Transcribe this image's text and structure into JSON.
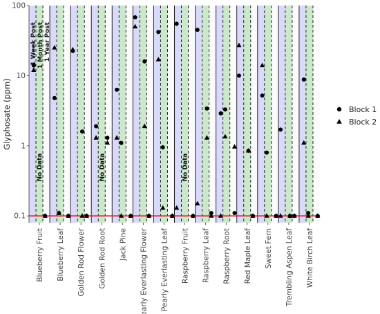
{
  "chart_data": {
    "type": "scatter",
    "ylabel": "Glyphosate (ppm)",
    "xlabel": "",
    "y_scale": "log",
    "ylim": [
      0.08,
      100
    ],
    "y_ticks": [
      0.1,
      1,
      10,
      100
    ],
    "y_tick_labels": [
      "0.1",
      "1",
      "10",
      "100"
    ],
    "reference_line": {
      "y": 0.1,
      "color": "#e41a1c"
    },
    "grid": false,
    "legend_position": "right",
    "band_colors": [
      "#d9d9fb",
      "#cbe8cb",
      "#fbfbfb"
    ],
    "categories": [
      "Blueberry Fruit",
      "Blueberry Leaf",
      "Golden Rod Flower",
      "Golden Rod Root",
      "Jack Pine",
      "Pearly Everlasting Flower",
      "Pearly Everlasting Leaf",
      "Raspberry Fruit",
      "Raspberry Leaf",
      "Raspberry Root",
      "Red Maple Leaf",
      "Sweet Fern",
      "Trembling Aspen Leaf",
      "White Birch Leaf"
    ],
    "time_annotations": [
      "1 Week Post",
      "1 Month Post",
      "1 Year Post"
    ],
    "no_data": [
      {
        "category_index": 0,
        "period_index": 1,
        "text": "No Data"
      },
      {
        "category_index": 3,
        "period_index": 1,
        "text": "No Data"
      },
      {
        "category_index": 7,
        "period_index": 1,
        "text": "No Data"
      }
    ],
    "series": [
      {
        "name": "Block 1",
        "marker": "circle",
        "points": [
          {
            "category_index": 0,
            "period_index": 0,
            "y": 14
          },
          {
            "category_index": 0,
            "period_index": 2,
            "y": 0.1
          },
          {
            "category_index": 1,
            "period_index": 0,
            "y": 4.8
          },
          {
            "category_index": 1,
            "period_index": 1,
            "y": 0.11
          },
          {
            "category_index": 1,
            "period_index": 2,
            "y": 0.1
          },
          {
            "category_index": 2,
            "period_index": 0,
            "y": 22.5
          },
          {
            "category_index": 2,
            "period_index": 1,
            "y": 1.6
          },
          {
            "category_index": 2,
            "period_index": 2,
            "y": 0.1
          },
          {
            "category_index": 3,
            "period_index": 0,
            "y": 1.9
          },
          {
            "category_index": 3,
            "period_index": 2,
            "y": 1.3
          },
          {
            "category_index": 4,
            "period_index": 0,
            "y": 6.3
          },
          {
            "category_index": 4,
            "period_index": 1,
            "y": 1.1
          },
          {
            "category_index": 4,
            "period_index": 2,
            "y": 0.1
          },
          {
            "category_index": 5,
            "period_index": 0,
            "y": 68
          },
          {
            "category_index": 5,
            "period_index": 1,
            "y": 16
          },
          {
            "category_index": 5,
            "period_index": 2,
            "y": 0.1
          },
          {
            "category_index": 6,
            "period_index": 0,
            "y": 42
          },
          {
            "category_index": 6,
            "period_index": 1,
            "y": 0.95
          },
          {
            "category_index": 6,
            "period_index": 2,
            "y": 0.1
          },
          {
            "category_index": 7,
            "period_index": 0,
            "y": 55
          },
          {
            "category_index": 7,
            "period_index": 2,
            "y": 0.1
          },
          {
            "category_index": 8,
            "period_index": 0,
            "y": 45
          },
          {
            "category_index": 8,
            "period_index": 1,
            "y": 3.4
          },
          {
            "category_index": 8,
            "period_index": 2,
            "y": 0.11
          },
          {
            "category_index": 9,
            "period_index": 0,
            "y": 2.9
          },
          {
            "category_index": 9,
            "period_index": 1,
            "y": 3.3
          },
          {
            "category_index": 9,
            "period_index": 2,
            "y": 0.11
          },
          {
            "category_index": 10,
            "period_index": 0,
            "y": 10
          },
          {
            "category_index": 10,
            "period_index": 1,
            "y": 0.85
          },
          {
            "category_index": 10,
            "period_index": 2,
            "y": 0.1
          },
          {
            "category_index": 11,
            "period_index": 0,
            "y": 5.2
          },
          {
            "category_index": 11,
            "period_index": 1,
            "y": 0.8
          },
          {
            "category_index": 11,
            "period_index": 2,
            "y": 0.1
          },
          {
            "category_index": 12,
            "period_index": 0,
            "y": 1.7
          },
          {
            "category_index": 12,
            "period_index": 1,
            "y": 0.1
          },
          {
            "category_index": 12,
            "period_index": 2,
            "y": 0.1
          },
          {
            "category_index": 13,
            "period_index": 0,
            "y": 8.8
          },
          {
            "category_index": 13,
            "period_index": 1,
            "y": 0.11
          },
          {
            "category_index": 13,
            "period_index": 2,
            "y": 0.1
          }
        ]
      },
      {
        "name": "Block 2",
        "marker": "triangle",
        "points": [
          {
            "category_index": 0,
            "period_index": 0,
            "y": 12
          },
          {
            "category_index": 0,
            "period_index": 2,
            "y": 0.1
          },
          {
            "category_index": 1,
            "period_index": 0,
            "y": 25
          },
          {
            "category_index": 1,
            "period_index": 1,
            "y": 0.11
          },
          {
            "category_index": 1,
            "period_index": 2,
            "y": 0.1
          },
          {
            "category_index": 2,
            "period_index": 0,
            "y": 23.5
          },
          {
            "category_index": 2,
            "period_index": 1,
            "y": 0.1
          },
          {
            "category_index": 2,
            "period_index": 2,
            "y": 0.1
          },
          {
            "category_index": 3,
            "period_index": 0,
            "y": 1.3
          },
          {
            "category_index": 3,
            "period_index": 2,
            "y": 1.1
          },
          {
            "category_index": 4,
            "period_index": 0,
            "y": 1.3
          },
          {
            "category_index": 4,
            "period_index": 1,
            "y": 0.1
          },
          {
            "category_index": 4,
            "period_index": 2,
            "y": 0.1
          },
          {
            "category_index": 5,
            "period_index": 0,
            "y": 50
          },
          {
            "category_index": 5,
            "period_index": 1,
            "y": 1.9
          },
          {
            "category_index": 5,
            "period_index": 2,
            "y": 0.1
          },
          {
            "category_index": 6,
            "period_index": 0,
            "y": 17
          },
          {
            "category_index": 6,
            "period_index": 1,
            "y": 0.13
          },
          {
            "category_index": 6,
            "period_index": 2,
            "y": 0.1
          },
          {
            "category_index": 7,
            "period_index": 0,
            "y": 0.13
          },
          {
            "category_index": 7,
            "period_index": 2,
            "y": 0.1
          },
          {
            "category_index": 8,
            "period_index": 0,
            "y": 0.15
          },
          {
            "category_index": 8,
            "period_index": 1,
            "y": 1.3
          },
          {
            "category_index": 8,
            "period_index": 2,
            "y": 0.1
          },
          {
            "category_index": 9,
            "period_index": 0,
            "y": 0.1
          },
          {
            "category_index": 9,
            "period_index": 1,
            "y": 1.35
          },
          {
            "category_index": 9,
            "period_index": 2,
            "y": 0.97
          },
          {
            "category_index": 10,
            "period_index": 0,
            "y": 27
          },
          {
            "category_index": 10,
            "period_index": 1,
            "y": 0.85
          },
          {
            "category_index": 10,
            "period_index": 2,
            "y": 0.1
          },
          {
            "category_index": 11,
            "period_index": 0,
            "y": 14
          },
          {
            "category_index": 11,
            "period_index": 1,
            "y": 0.1
          },
          {
            "category_index": 11,
            "period_index": 2,
            "y": 0.1
          },
          {
            "category_index": 12,
            "period_index": 0,
            "y": 0.1
          },
          {
            "category_index": 12,
            "period_index": 1,
            "y": 0.1
          },
          {
            "category_index": 12,
            "period_index": 2,
            "y": 0.1
          },
          {
            "category_index": 13,
            "period_index": 0,
            "y": 1.1
          },
          {
            "category_index": 13,
            "period_index": 1,
            "y": 0.1
          },
          {
            "category_index": 13,
            "period_index": 2,
            "y": 0.1
          }
        ]
      }
    ]
  }
}
